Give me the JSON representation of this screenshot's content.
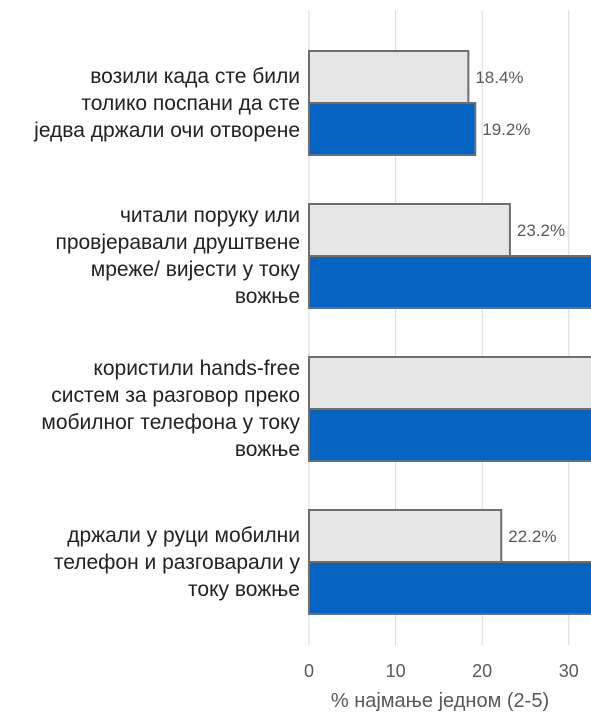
{
  "chart_data": {
    "type": "bar",
    "orientation": "horizontal",
    "categories": [
      [
        "возили када сте били",
        "толико поспани да сте",
        "једва држали очи отворене"
      ],
      [
        "читали поруку или",
        "провјеравали друштвене",
        "мреже/ вијести у току",
        "вожње"
      ],
      [
        "користили hands-free",
        "систем за разговор преко",
        "мобилног телефона у току",
        "вожње"
      ],
      [
        "држали у руци мобилни",
        "телефон и разговарали у",
        "току вожње"
      ]
    ],
    "series": [
      {
        "values": [
          18.4,
          23.2,
          51.0,
          22.2
        ],
        "labels": [
          "18.4%",
          "23.2%",
          "51.0%",
          "22.2%"
        ],
        "color": "#e6e6e6"
      },
      {
        "values": [
          19.2,
          36.6,
          48.0,
          48.5
        ],
        "labels": [
          "19.2%",
          "36.6%",
          "48.0%",
          "48.5%"
        ],
        "color": "#0563c1"
      }
    ],
    "xlabel": "% најмање једном (2-5)",
    "xlim": [
      0,
      60
    ],
    "xticks": [
      "0",
      "10",
      "20",
      "30",
      "40",
      "50",
      "60"
    ],
    "grid": true,
    "legend": "none"
  }
}
